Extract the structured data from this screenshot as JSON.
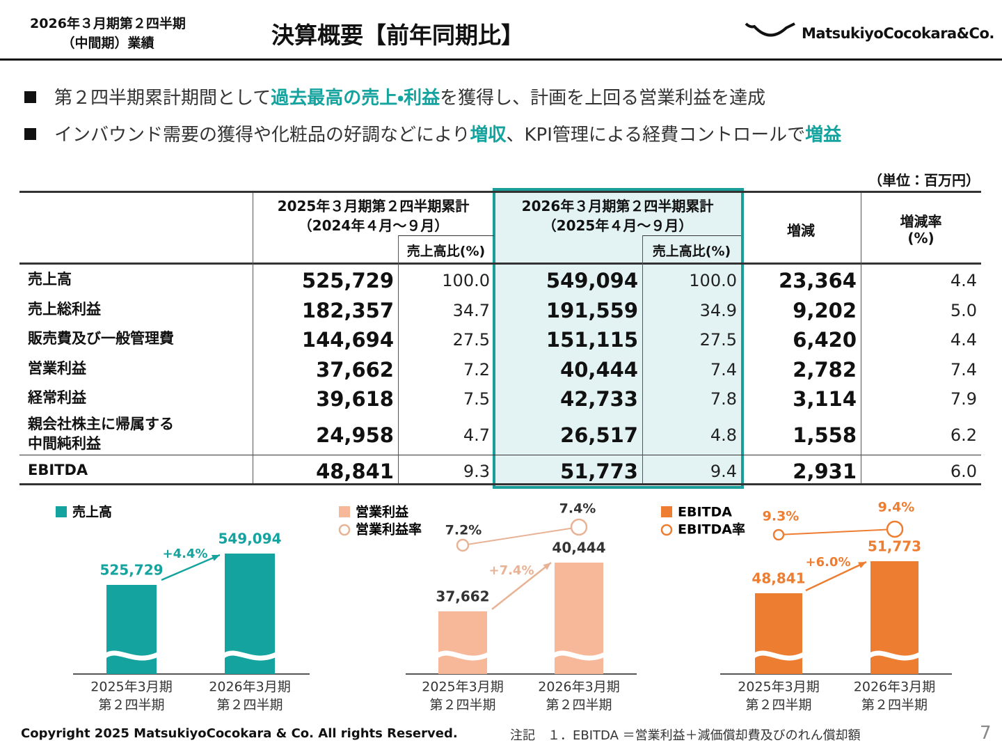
{
  "header": {
    "period": [
      "2026年３月期第２四半期",
      "（中間期）業績"
    ],
    "title": "決算概要【前年同期比】",
    "logo": "MatsukiyoCocokara&Co."
  },
  "bullets": [
    [
      {
        "text": "第２四半期累計期間として",
        "highlight": false
      },
      {
        "text": "過去最高の売上・利益",
        "highlight": true
      },
      {
        "text": "を獲得し、計画を上回る営業利益を達成",
        "highlight": false
      }
    ],
    [
      {
        "text": "インバウンド需要の獲得や化粧品の好調などにより",
        "highlight": false
      },
      {
        "text": "増収",
        "highlight": true
      },
      {
        "text": "、KPI管理による経費コントロールで",
        "highlight": false
      },
      {
        "text": "増益",
        "highlight": true
      }
    ]
  ],
  "table": {
    "unit": "（単位：百万円）",
    "headers": {
      "prev": [
        "2025年３月期第２四半期累計",
        "（2024年４月～９月）"
      ],
      "curr": [
        "2026年３月期第２四半期累計",
        "（2025年４月～９月）"
      ],
      "ratio": "売上高比(%)",
      "diff": "増減",
      "rate": [
        "増減率",
        "(%)"
      ]
    },
    "rows": [
      [
        "売上高",
        "525,729",
        "100.0",
        "549,094",
        "100.0",
        "23,364",
        "4.4"
      ],
      [
        "売上総利益",
        "182,357",
        "34.7",
        "191,559",
        "34.9",
        "9,202",
        "5.0"
      ],
      [
        "販売費及び一般管理費",
        "144,694",
        "27.5",
        "151,115",
        "27.5",
        "6,420",
        "4.4"
      ],
      [
        "営業利益",
        "37,662",
        "7.2",
        "40,444",
        "7.4",
        "2,782",
        "7.4"
      ],
      [
        "経常利益",
        "39,618",
        "7.5",
        "42,733",
        "7.8",
        "3,114",
        "7.9"
      ],
      [
        "親会社株主に帰属する\n中間純利益",
        "24,958",
        "4.7",
        "26,517",
        "4.8",
        "1,558",
        "6.2"
      ],
      [
        "EBITDA",
        "48,841",
        "9.3",
        "51,773",
        "9.4",
        "2,931",
        "6.0"
      ]
    ]
  },
  "charts": [
    {
      "legend": [
        "売上高"
      ],
      "bar_labels": [
        "525,729",
        "549,094"
      ],
      "growth": "+4.4%",
      "categories": [
        [
          "2025年3月期",
          "第２四半期"
        ],
        [
          "2026年3月期",
          "第２四半期"
        ]
      ]
    },
    {
      "legend": [
        "営業利益",
        "営業利益率"
      ],
      "bar_labels": [
        "37,662",
        "40,444"
      ],
      "rate_labels": [
        "7.2%",
        "7.4%"
      ],
      "growth": "+7.4%",
      "categories": [
        [
          "2025年3月期",
          "第２四半期"
        ],
        [
          "2026年3月期",
          "第２四半期"
        ]
      ]
    },
    {
      "legend": [
        "EBITDA",
        "EBITDA率"
      ],
      "bar_labels": [
        "48,841",
        "51,773"
      ],
      "rate_labels": [
        "9.3%",
        "9.4%"
      ],
      "growth": "+6.0%",
      "categories": [
        [
          "2025年3月期",
          "第２四半期"
        ],
        [
          "2026年3月期",
          "第２四半期"
        ]
      ]
    }
  ],
  "footer": {
    "copyright": "Copyright 2025 MatsukiyoCocokara & Co. All rights Reserved.",
    "note": "注記　１．EBITDA ＝営業利益＋減価償却費及びのれん償却額",
    "page": "7"
  }
}
